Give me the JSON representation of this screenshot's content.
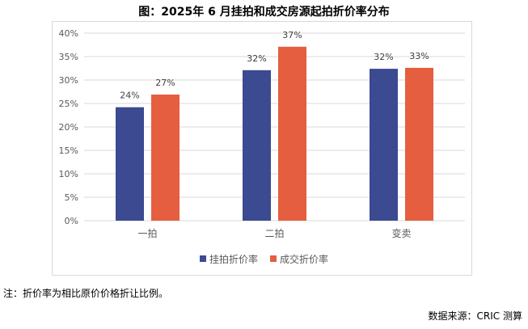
{
  "title": "图：2025年 6 月挂拍和成交房源起拍折价率分布",
  "note": "注：折价率为相比原价价格折让比例。",
  "source": "数据来源：CRIC 测算",
  "chart_data": {
    "type": "bar",
    "categories": [
      "一拍",
      "二拍",
      "变卖"
    ],
    "series": [
      {
        "name": "挂拍折价率",
        "color": "#3b4a91",
        "values": [
          24.2,
          32.1,
          32.4
        ],
        "labels": [
          "24%",
          "32%",
          "32%"
        ]
      },
      {
        "name": "成交折价率",
        "color": "#e55e3f",
        "values": [
          26.9,
          37.1,
          32.6
        ],
        "labels": [
          "27%",
          "37%",
          "33%"
        ]
      }
    ],
    "ylim": [
      0,
      40
    ],
    "yticks": [
      "0%",
      "5%",
      "10%",
      "15%",
      "20%",
      "25%",
      "30%",
      "35%",
      "40%"
    ],
    "grid": true,
    "legend": "bottom"
  }
}
